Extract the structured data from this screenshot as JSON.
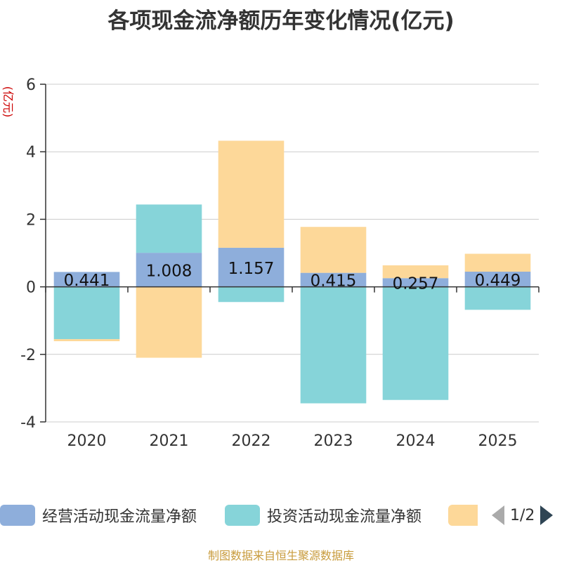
{
  "chart_data": {
    "type": "bar",
    "stacked": true,
    "title": "各项现金流净额历年变化情况(亿元)",
    "ylabel": "(亿元)",
    "ylim": [
      -4,
      6
    ],
    "yticks": [
      -4,
      -2,
      0,
      2,
      4,
      6
    ],
    "grid": true,
    "categories": [
      "2020",
      "2021",
      "2022",
      "2023",
      "2024",
      "2025"
    ],
    "series": [
      {
        "name": "经营活动现金流量净额",
        "color": "#8eaedb",
        "values": [
          0.441,
          1.008,
          1.157,
          0.415,
          0.257,
          0.449
        ],
        "labels": [
          "0.441",
          "1.008",
          "1.157",
          "0.415",
          "0.257",
          "0.449"
        ]
      },
      {
        "name": "投资活动现金流量净额",
        "color": "#86d4d9",
        "values": [
          -1.55,
          1.43,
          -0.45,
          -3.45,
          -3.35,
          -0.68
        ]
      },
      {
        "name": "",
        "color": "#fdd899",
        "values": [
          -0.06,
          -2.1,
          3.17,
          1.36,
          0.38,
          0.53
        ]
      }
    ]
  },
  "legend": {
    "page": "1/2"
  },
  "source": "制图数据来自恒生聚源数据库"
}
